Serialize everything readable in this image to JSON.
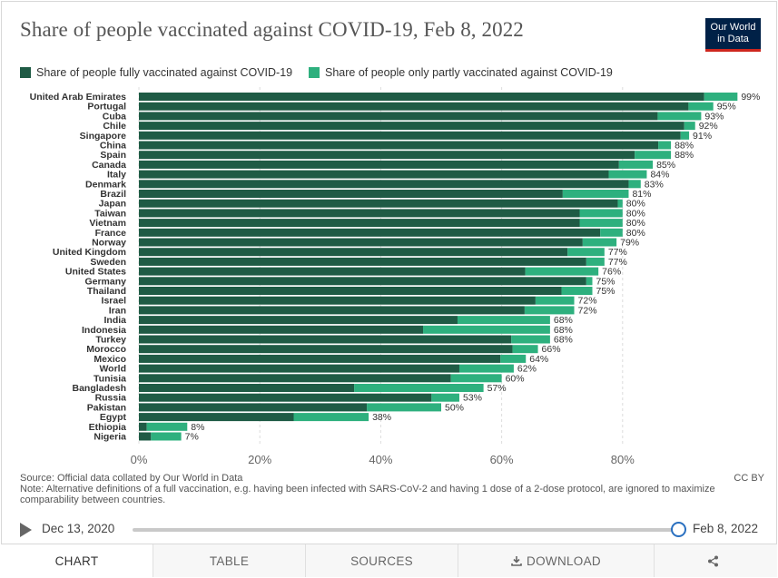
{
  "title": "Share of people vaccinated against COVID-19, Feb 8, 2022",
  "logo": {
    "line1": "Our World",
    "line2": "in Data"
  },
  "legend": {
    "full": "Share of people fully vaccinated against COVID-19",
    "partial": "Share of people only partly vaccinated against COVID-19"
  },
  "colors": {
    "full": "#1f5b45",
    "partial": "#2eb07e",
    "text": "#333333",
    "grid": "#dddddd"
  },
  "chart_data": {
    "type": "bar",
    "orientation": "horizontal",
    "stacked": true,
    "categories": [
      "United Arab Emirates",
      "Portugal",
      "Cuba",
      "Chile",
      "Singapore",
      "China",
      "Spain",
      "Canada",
      "Italy",
      "Denmark",
      "Brazil",
      "Japan",
      "Taiwan",
      "Vietnam",
      "France",
      "Norway",
      "United Kingdom",
      "Sweden",
      "United States",
      "Germany",
      "Thailand",
      "Israel",
      "Iran",
      "India",
      "Indonesia",
      "Turkey",
      "Morocco",
      "Mexico",
      "World",
      "Tunisia",
      "Bangladesh",
      "Russia",
      "Pakistan",
      "Egypt",
      "Ethiopia",
      "Nigeria"
    ],
    "series": [
      {
        "name": "Share of people fully vaccinated against COVID-19",
        "values": [
          93.5,
          90.9,
          85.8,
          90.2,
          89.6,
          85.9,
          82.0,
          79.4,
          77.7,
          81.0,
          70.1,
          79.2,
          72.9,
          72.9,
          76.3,
          73.4,
          70.9,
          74.0,
          63.9,
          74.0,
          69.9,
          65.6,
          63.8,
          52.7,
          47.0,
          61.6,
          61.8,
          59.8,
          53.0,
          51.6,
          35.6,
          48.4,
          37.7,
          25.6,
          1.3,
          2.0
        ]
      },
      {
        "name": "Share of people only partly vaccinated against COVID-19",
        "values": [
          5.5,
          4.1,
          7.2,
          1.8,
          1.4,
          2.1,
          6.0,
          5.6,
          6.3,
          2.0,
          10.9,
          0.8,
          7.1,
          7.1,
          3.7,
          5.6,
          6.1,
          3.0,
          12.1,
          1.0,
          5.1,
          6.4,
          8.2,
          15.3,
          21.0,
          6.4,
          4.2,
          4.2,
          9.0,
          8.4,
          21.4,
          4.6,
          12.3,
          12.4,
          6.7,
          5.0
        ]
      }
    ],
    "totals_labels": [
      "99%",
      "95%",
      "93%",
      "92%",
      "91%",
      "88%",
      "88%",
      "85%",
      "84%",
      "83%",
      "81%",
      "80%",
      "80%",
      "80%",
      "80%",
      "79%",
      "77%",
      "77%",
      "76%",
      "75%",
      "75%",
      "72%",
      "72%",
      "68%",
      "68%",
      "68%",
      "66%",
      "64%",
      "62%",
      "60%",
      "57%",
      "53%",
      "50%",
      "38%",
      "8%",
      "7%"
    ],
    "xlim": [
      0,
      100
    ],
    "xticks": [
      0,
      20,
      40,
      60,
      80
    ],
    "xtick_labels": [
      "0%",
      "20%",
      "40%",
      "60%",
      "80%"
    ],
    "grid": true,
    "legend_position": "top"
  },
  "footer": {
    "source": "Source: Official data collated by Our World in Data",
    "note": "Note: Alternative definitions of a full vaccination, e.g. having been infected with SARS-CoV-2 and having 1 dose of a 2-dose protocol, are ignored to maximize comparability between countries.",
    "license": "CC BY"
  },
  "timeline": {
    "start": "Dec 13, 2020",
    "end": "Feb 8, 2022",
    "position": 1.0
  },
  "tabs": {
    "chart": "CHART",
    "table": "TABLE",
    "sources": "SOURCES",
    "download": "DOWNLOAD"
  }
}
